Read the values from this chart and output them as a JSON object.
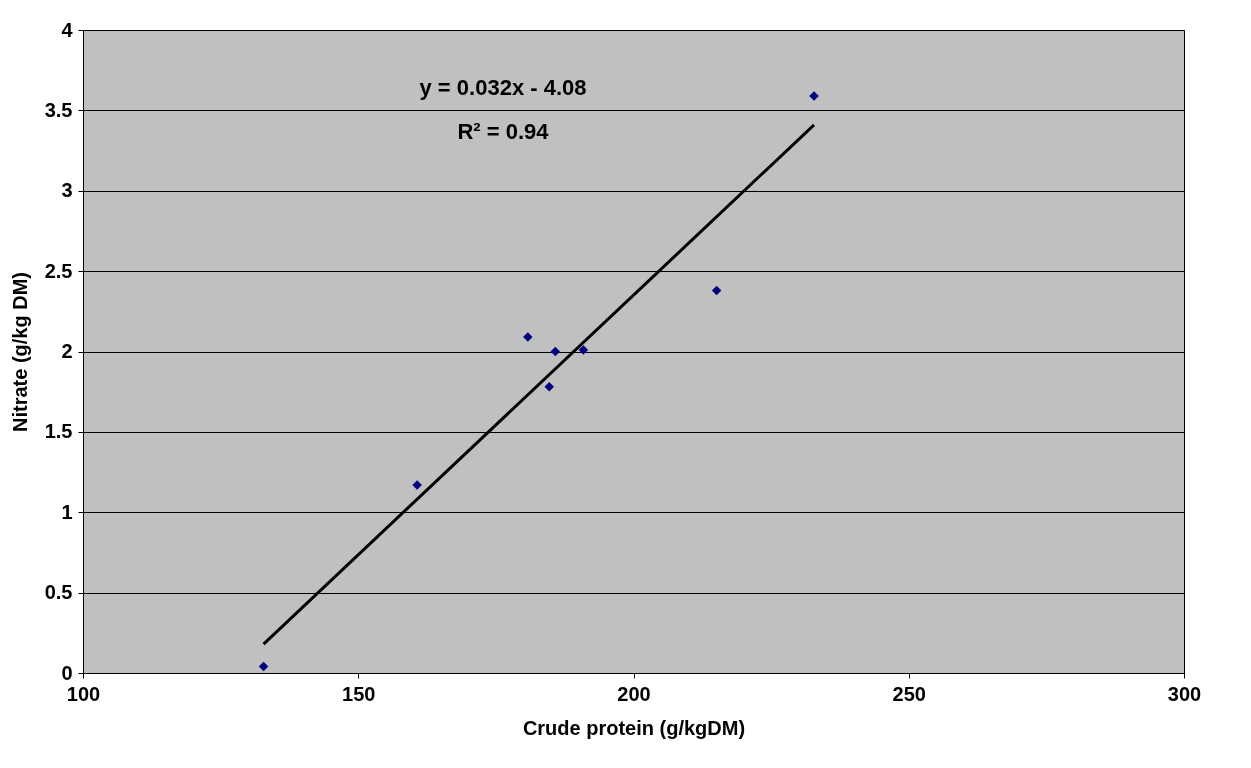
{
  "chart_data": {
    "type": "scatter",
    "xlabel": "Crude protein (g/kgDM)",
    "ylabel": "Nitrate (g/kg DM)",
    "xlim": [
      100,
      300
    ],
    "xticks": [
      100,
      150,
      200,
      250,
      300
    ],
    "ylim": [
      0,
      4
    ],
    "yticks": [
      0,
      0.5,
      1,
      1.5,
      2,
      2.5,
      3,
      3.5,
      4
    ],
    "grid": "y",
    "series": [
      {
        "marker": "diamond",
        "color": "#000080",
        "x": [
          132.8,
          160.7,
          180.8,
          184.7,
          185.8,
          190.9,
          215.1,
          232.8
        ],
        "values": [
          0.04,
          1.17,
          2.09,
          1.78,
          2.0,
          2.01,
          2.38,
          3.59
        ]
      },
      {
        "type": "line",
        "marker": "none",
        "color": "#000000",
        "x": [
          132.8,
          232.8
        ],
        "values": [
          0.18,
          3.41
        ]
      }
    ],
    "annotations": [
      "y = 0.032x - 4.08",
      "R² = 0.94"
    ]
  }
}
